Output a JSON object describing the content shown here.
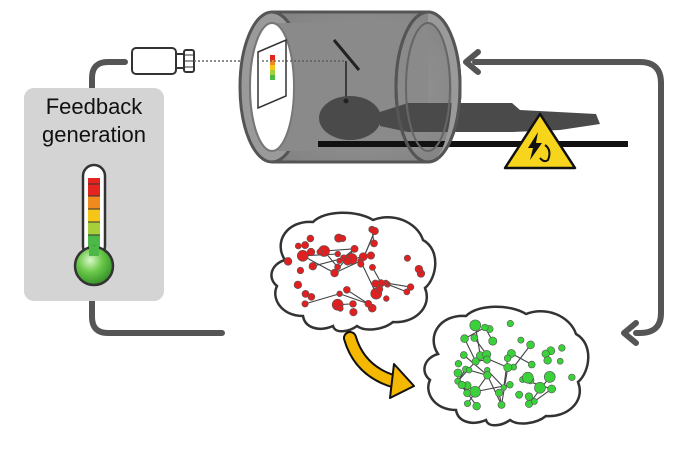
{
  "feedback_box": {
    "title_line1": "Feedback",
    "title_line2": "generation"
  },
  "colors": {
    "loop_arrow": "#555555",
    "feedback_box_bg": "#d4d4d4",
    "scanner": "#8a8a8a",
    "scanner_dark": "#444444",
    "brain_before": "#e02020",
    "brain_after": "#3ad13a",
    "transition_arrow": "#f5b800",
    "warning": "#f7d51d",
    "thermometer_levels": [
      "#e6241f",
      "#f08a1f",
      "#f5c518",
      "#a6cf3a",
      "#4cb848"
    ]
  },
  "icons": {
    "scanner": "mri-scanner-icon",
    "projector": "projector-icon",
    "display": "feedback-display-icon",
    "mirror": "head-coil-mirror-icon",
    "warning": "electric-hazard-warning-icon",
    "thermometer": "thermometer-icon",
    "brain_before": "brain-network-red-icon",
    "brain_after": "brain-network-green-icon"
  },
  "thermometer": {
    "level_fraction": 0.15
  }
}
